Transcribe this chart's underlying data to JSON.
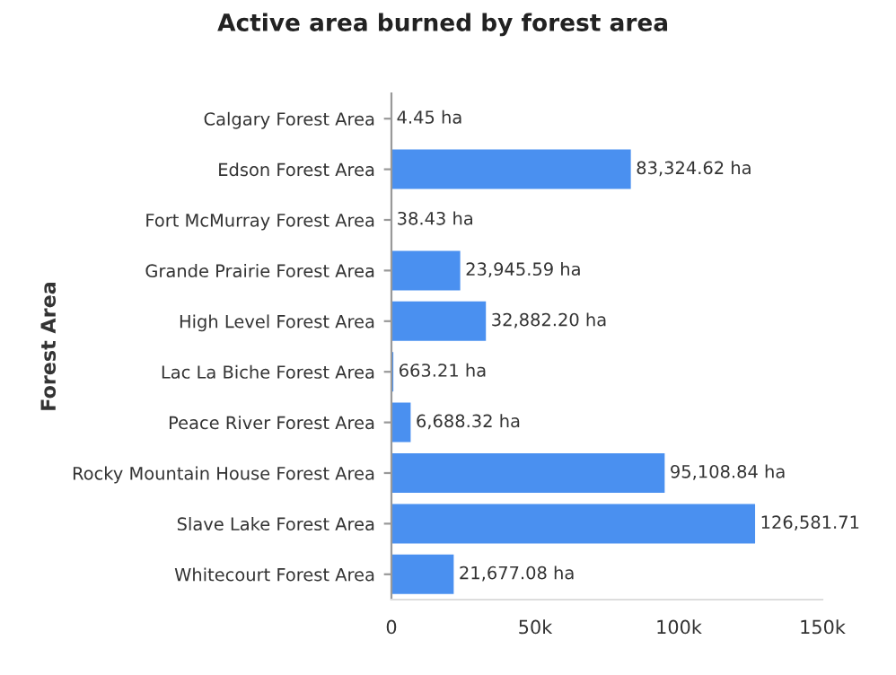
{
  "chart_data": {
    "type": "bar",
    "orientation": "horizontal",
    "title": "Active area burned by forest area",
    "ylabel": "Forest Area",
    "categories": [
      "Calgary Forest Area",
      "Edson Forest Area",
      "Fort McMurray Forest Area",
      "Grande Prairie Forest Area",
      "High Level Forest Area",
      "Lac La Biche Forest Area",
      "Peace River Forest Area",
      "Rocky Mountain House Forest Area",
      "Slave Lake Forest Area",
      "Whitecourt Forest Area"
    ],
    "values": [
      4.45,
      83324.62,
      38.43,
      23945.59,
      32882.2,
      663.21,
      6688.32,
      95108.84,
      126581.71,
      21677.08
    ],
    "value_labels": [
      "4.45 ha",
      "83,324.62 ha",
      "38.43 ha",
      "23,945.59 ha",
      "32,882.20 ha",
      "663.21 ha",
      "6,688.32 ha",
      "95,108.84 ha",
      "126,581.71",
      "21,677.08 ha"
    ],
    "color": "#4a90f0",
    "xlim": [
      0,
      150000
    ],
    "xticks": [
      {
        "value": 0,
        "label": "0"
      },
      {
        "value": 50000,
        "label": "50k"
      },
      {
        "value": 100000,
        "label": "100k"
      },
      {
        "value": 150000,
        "label": "150k"
      }
    ]
  }
}
